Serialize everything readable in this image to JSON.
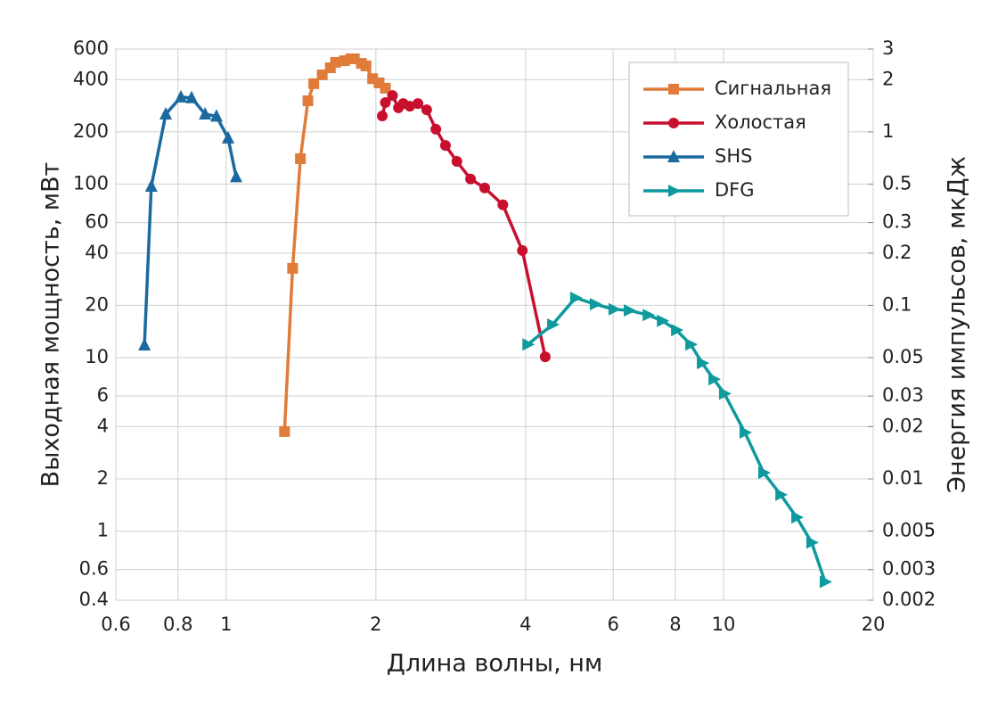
{
  "chart_data": {
    "type": "line",
    "xlabel": "Длина волны, нм",
    "ylabel": "Выходная мощность, мВт",
    "y2label": "Энергия импульсов, мкДж",
    "xscale": "log",
    "yscale": "log",
    "grid": true,
    "legend": "upper right",
    "xlim": [
      0.6,
      20
    ],
    "xticks": [
      0.6,
      0.8,
      1,
      2,
      4,
      6,
      8,
      10,
      20
    ],
    "ylim": [
      0.4,
      600
    ],
    "yticks": [
      0.4,
      0.6,
      1,
      2,
      4,
      6,
      10,
      20,
      40,
      60,
      100,
      200,
      400,
      600
    ],
    "y2lim": [
      0.002,
      3
    ],
    "y2ticks": [
      0.002,
      0.003,
      0.005,
      0.01,
      0.02,
      0.03,
      0.05,
      0.1,
      0.2,
      0.3,
      0.5,
      1,
      2,
      3
    ],
    "series": [
      {
        "name": "Сигнальная",
        "color": "#e07b39",
        "marker": "square",
        "x": [
          1.31,
          1.36,
          1.41,
          1.46,
          1.5,
          1.56,
          1.62,
          1.66,
          1.73,
          1.78,
          1.81,
          1.87,
          1.91,
          1.97,
          2.03,
          2.09
        ],
        "values": [
          3.75,
          32.7,
          140,
          302,
          379,
          426,
          468,
          503,
          514,
          527,
          527,
          496,
          480,
          405,
          383,
          357
        ]
      },
      {
        "name": "Холостая",
        "color": "#c8102e",
        "marker": "circle",
        "x": [
          2.06,
          2.09,
          2.16,
          2.22,
          2.27,
          2.34,
          2.43,
          2.53,
          2.64,
          2.76,
          2.91,
          3.1,
          3.31,
          3.6,
          3.94,
          4.38
        ],
        "values": [
          247,
          295,
          324,
          275,
          291,
          281,
          291,
          268,
          207,
          167,
          135,
          107,
          95,
          76,
          41.4,
          10.1
        ]
      },
      {
        "name": "SHS",
        "color": "#1a6aa0",
        "marker": "triangle-up",
        "x": [
          0.685,
          0.707,
          0.756,
          0.811,
          0.852,
          0.907,
          0.956,
          1.009,
          1.047
        ],
        "values": [
          11.8,
          97,
          253,
          317,
          314,
          253,
          246,
          184,
          110
        ]
      },
      {
        "name": "DFG",
        "color": "#0f9a9e",
        "marker": "triangle-right",
        "x": [
          4.04,
          4.53,
          5.04,
          5.52,
          6.02,
          6.46,
          7.05,
          7.53,
          8.04,
          8.59,
          9.06,
          9.56,
          10.04,
          11.04,
          12.04,
          13.03,
          14.03,
          15.04,
          16.0
        ],
        "values": [
          11.9,
          15.5,
          22.1,
          20.3,
          19.0,
          18.7,
          17.6,
          16.3,
          14.4,
          11.9,
          9.3,
          7.5,
          6.2,
          3.7,
          2.17,
          1.62,
          1.2,
          0.86,
          0.51
        ]
      }
    ]
  }
}
